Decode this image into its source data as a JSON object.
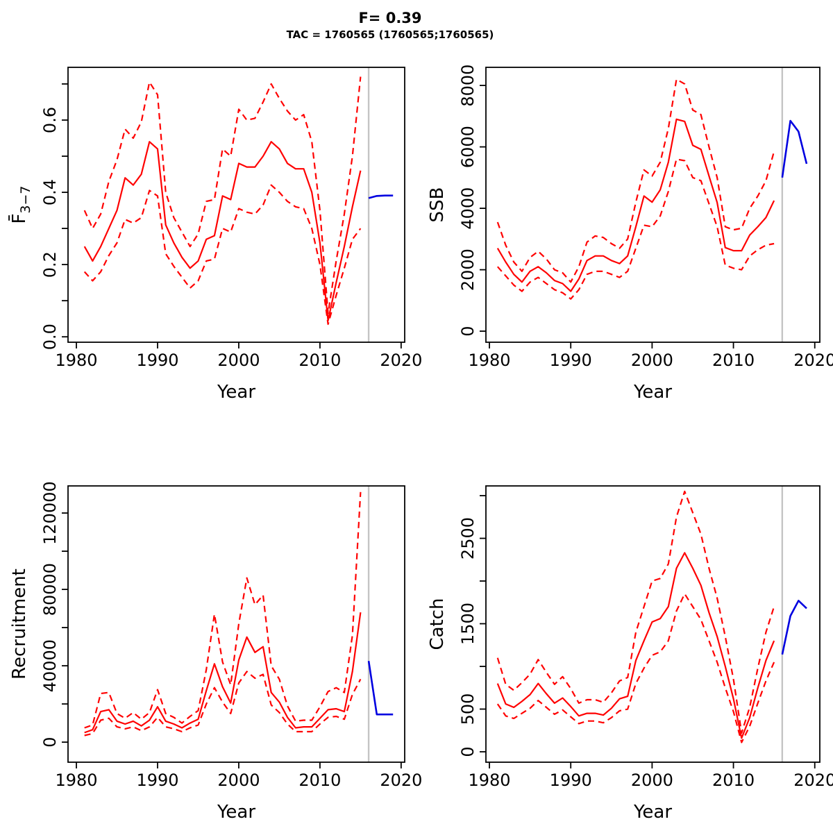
{
  "header": {
    "title": "F= 0.39",
    "subtitle": "TAC = 1760565 (1760565;1760565)"
  },
  "colors": {
    "median_and_ci": "#ff0000",
    "forecast": "#0000e0",
    "divider": "#c4c4c4",
    "axis": "#000000",
    "background": "#ffffff"
  },
  "chart_data": [
    {
      "type": "line",
      "name": "fbar",
      "xlabel": "Year",
      "ylabel": "F3-7",
      "ylabel_parts": {
        "main": "F̄",
        "sub": "3−7"
      },
      "xlim": [
        1978.97,
        2020.44
      ],
      "ylim": [
        -0.015,
        0.746
      ],
      "xticks": {
        "values": [
          1980,
          1990,
          2000,
          2010,
          2020
        ],
        "labels": [
          "1980",
          "1990",
          "2000",
          "2010",
          "2020"
        ]
      },
      "yticks": {
        "values": [
          0.0,
          0.2,
          0.4,
          0.6
        ],
        "labels": [
          "0.0",
          "0.2",
          "0.4",
          "0.6"
        ],
        "minor": [
          0.1,
          0.3,
          0.5,
          0.7
        ]
      },
      "divider_x": 2016,
      "x": [
        1981,
        1982,
        1983,
        1984,
        1985,
        1986,
        1987,
        1988,
        1989,
        1990,
        1991,
        1992,
        1993,
        1994,
        1995,
        1996,
        1997,
        1998,
        1999,
        2000,
        2001,
        2002,
        2003,
        2004,
        2005,
        2006,
        2007,
        2008,
        2009,
        2010,
        2011,
        2012,
        2013,
        2014,
        2015
      ],
      "series": [
        {
          "name": "median",
          "style": "solid",
          "values": [
            0.25,
            0.21,
            0.25,
            0.3,
            0.35,
            0.44,
            0.42,
            0.45,
            0.54,
            0.52,
            0.31,
            0.26,
            0.22,
            0.19,
            0.21,
            0.27,
            0.28,
            0.39,
            0.38,
            0.48,
            0.47,
            0.47,
            0.5,
            0.54,
            0.52,
            0.48,
            0.465,
            0.465,
            0.4,
            0.26,
            0.045,
            0.15,
            0.25,
            0.36,
            0.46
          ]
        },
        {
          "name": "upper-ci",
          "style": "dashed",
          "values": [
            0.35,
            0.3,
            0.34,
            0.43,
            0.49,
            0.575,
            0.55,
            0.595,
            0.705,
            0.67,
            0.4,
            0.33,
            0.29,
            0.25,
            0.285,
            0.375,
            0.38,
            0.52,
            0.5,
            0.63,
            0.6,
            0.605,
            0.65,
            0.7,
            0.66,
            0.625,
            0.6,
            0.615,
            0.54,
            0.35,
            0.065,
            0.21,
            0.34,
            0.5,
            0.72
          ]
        },
        {
          "name": "lower-ci",
          "style": "dashed",
          "values": [
            0.18,
            0.155,
            0.18,
            0.225,
            0.26,
            0.325,
            0.315,
            0.33,
            0.405,
            0.39,
            0.23,
            0.195,
            0.165,
            0.135,
            0.155,
            0.21,
            0.215,
            0.3,
            0.29,
            0.355,
            0.345,
            0.34,
            0.365,
            0.42,
            0.4,
            0.375,
            0.36,
            0.355,
            0.3,
            0.2,
            0.035,
            0.115,
            0.19,
            0.27,
            0.3
          ]
        },
        {
          "name": "forecast",
          "style": "solid",
          "color": "forecast",
          "x": [
            2016,
            2017,
            2018,
            2019
          ],
          "values": [
            0.384,
            0.39,
            0.391,
            0.391
          ]
        }
      ]
    },
    {
      "type": "line",
      "name": "ssb",
      "xlabel": "Year",
      "ylabel": "SSB",
      "xlim": [
        1979.57,
        2020.62
      ],
      "ylim": [
        -360,
        8590
      ],
      "xticks": {
        "values": [
          1980,
          1990,
          2000,
          2010,
          2020
        ],
        "labels": [
          "1980",
          "1990",
          "2000",
          "2010",
          "2020"
        ]
      },
      "yticks": {
        "values": [
          0,
          2000,
          4000,
          6000,
          8000
        ],
        "labels": [
          "0",
          "2000",
          "4000",
          "6000",
          "8000"
        ],
        "minor": []
      },
      "divider_x": 2016,
      "x": [
        1981,
        1982,
        1983,
        1984,
        1985,
        1986,
        1987,
        1988,
        1989,
        1990,
        1991,
        1992,
        1993,
        1994,
        1995,
        1996,
        1997,
        1998,
        1999,
        2000,
        2001,
        2002,
        2003,
        2004,
        2005,
        2006,
        2007,
        2008,
        2009,
        2010,
        2011,
        2012,
        2013,
        2014,
        2015
      ],
      "series": [
        {
          "name": "median",
          "style": "solid",
          "values": [
            2700,
            2250,
            1850,
            1600,
            1950,
            2100,
            1900,
            1650,
            1550,
            1300,
            1700,
            2300,
            2450,
            2450,
            2300,
            2200,
            2450,
            3400,
            4400,
            4200,
            4600,
            5500,
            6900,
            6830,
            6050,
            5920,
            5050,
            4190,
            2720,
            2620,
            2620,
            3130,
            3400,
            3700,
            4250
          ]
        },
        {
          "name": "upper-ci",
          "style": "dashed",
          "values": [
            3550,
            2800,
            2250,
            1950,
            2400,
            2600,
            2350,
            2000,
            1900,
            1600,
            2100,
            2900,
            3100,
            3050,
            2850,
            2700,
            3000,
            4200,
            5250,
            5050,
            5500,
            6600,
            8200,
            8050,
            7200,
            7050,
            6000,
            5000,
            3400,
            3300,
            3350,
            4000,
            4400,
            4900,
            5850
          ]
        },
        {
          "name": "lower-ci",
          "style": "dashed",
          "values": [
            2100,
            1800,
            1500,
            1300,
            1600,
            1750,
            1550,
            1350,
            1250,
            1050,
            1350,
            1850,
            1950,
            1950,
            1850,
            1750,
            1950,
            2700,
            3450,
            3400,
            3750,
            4550,
            5600,
            5550,
            5000,
            4900,
            4150,
            3400,
            2150,
            2050,
            2000,
            2450,
            2650,
            2800,
            2850
          ]
        },
        {
          "name": "forecast",
          "style": "solid",
          "color": "forecast",
          "x": [
            2016,
            2017,
            2018,
            2019
          ],
          "values": [
            5000,
            6850,
            6500,
            5450
          ]
        }
      ]
    },
    {
      "type": "line",
      "name": "recruitment",
      "xlabel": "Year",
      "ylabel": "Recruitment",
      "xlim": [
        1978.97,
        2020.44
      ],
      "ylim": [
        -10500,
        134200
      ],
      "xticks": {
        "values": [
          1980,
          1990,
          2000,
          2010,
          2020
        ],
        "labels": [
          "1980",
          "1990",
          "2000",
          "2010",
          "2020"
        ]
      },
      "yticks": {
        "values": [
          0,
          40000,
          80000,
          120000
        ],
        "labels": [
          "0",
          "40000",
          "80000",
          "120000"
        ],
        "minor": [
          20000,
          60000,
          100000
        ]
      },
      "divider_x": 2016,
      "x": [
        1981,
        1982,
        1983,
        1984,
        1985,
        1986,
        1987,
        1988,
        1989,
        1990,
        1991,
        1992,
        1993,
        1994,
        1995,
        1996,
        1997,
        1998,
        1999,
        2000,
        2001,
        2002,
        2003,
        2004,
        2005,
        2006,
        2007,
        2008,
        2009,
        2010,
        2011,
        2012,
        2013,
        2014,
        2015
      ],
      "series": [
        {
          "name": "median",
          "style": "solid",
          "values": [
            5000,
            6500,
            16000,
            17000,
            11000,
            9500,
            11000,
            8500,
            11500,
            18500,
            11000,
            9500,
            7500,
            10000,
            12000,
            27000,
            41000,
            29000,
            20500,
            43000,
            55000,
            47000,
            50000,
            26000,
            21000,
            13000,
            7500,
            8000,
            8000,
            12500,
            17000,
            17500,
            16000,
            37000,
            68000
          ]
        },
        {
          "name": "upper-ci",
          "style": "dashed",
          "values": [
            7500,
            9000,
            25500,
            26000,
            15000,
            12500,
            15500,
            12000,
            15500,
            27500,
            15000,
            13000,
            10000,
            13500,
            16500,
            38000,
            67000,
            42000,
            30000,
            62000,
            86000,
            72000,
            77000,
            40000,
            33000,
            19000,
            11000,
            11500,
            11500,
            18500,
            26500,
            28500,
            26000,
            56000,
            131000
          ]
        },
        {
          "name": "lower-ci",
          "style": "dashed",
          "values": [
            3500,
            4500,
            11500,
            12500,
            8000,
            7000,
            8000,
            6000,
            8000,
            13000,
            8000,
            7000,
            5500,
            7500,
            9000,
            20000,
            28500,
            21000,
            15000,
            31000,
            37000,
            33500,
            35500,
            19500,
            15500,
            9500,
            5500,
            5500,
            5500,
            9500,
            13000,
            13500,
            12000,
            25000,
            33000
          ]
        },
        {
          "name": "forecast",
          "style": "solid",
          "color": "forecast",
          "x": [
            2016,
            2017,
            2018,
            2019
          ],
          "values": [
            42500,
            14500,
            14500,
            14500
          ]
        }
      ]
    },
    {
      "type": "line",
      "name": "catch",
      "xlabel": "Year",
      "ylabel": "Catch",
      "xlim": [
        1979.57,
        2020.62
      ],
      "ylim": [
        -122,
        3114
      ],
      "xticks": {
        "values": [
          1980,
          1990,
          2000,
          2010,
          2020
        ],
        "labels": [
          "1980",
          "1990",
          "2000",
          "2010",
          "2020"
        ]
      },
      "yticks": {
        "values": [
          0,
          500,
          1500,
          2500
        ],
        "labels": [
          "0",
          "500",
          "1500",
          "2500"
        ],
        "minor": [
          1000,
          2000,
          3000
        ]
      },
      "divider_x": 2016,
      "x": [
        1981,
        1982,
        1983,
        1984,
        1985,
        1986,
        1987,
        1988,
        1989,
        1990,
        1991,
        1992,
        1993,
        1994,
        1995,
        1996,
        1997,
        1998,
        1999,
        2000,
        2001,
        2002,
        2003,
        2004,
        2005,
        2006,
        2007,
        2008,
        2009,
        2010,
        2011,
        2012,
        2013,
        2014,
        2015
      ],
      "series": [
        {
          "name": "median",
          "style": "solid",
          "values": [
            800,
            560,
            520,
            590,
            670,
            800,
            680,
            570,
            630,
            530,
            420,
            450,
            450,
            430,
            510,
            620,
            650,
            1070,
            1300,
            1520,
            1560,
            1700,
            2150,
            2330,
            2150,
            1950,
            1630,
            1350,
            1000,
            620,
            160,
            400,
            750,
            1070,
            1300
          ]
        },
        {
          "name": "upper-ci",
          "style": "dashed",
          "values": [
            1100,
            790,
            720,
            810,
            910,
            1080,
            930,
            790,
            880,
            740,
            570,
            610,
            610,
            580,
            690,
            830,
            870,
            1400,
            1700,
            2000,
            2030,
            2200,
            2750,
            3050,
            2800,
            2550,
            2150,
            1800,
            1350,
            850,
            220,
            520,
            980,
            1400,
            1700
          ]
        },
        {
          "name": "lower-ci",
          "style": "dashed",
          "values": [
            560,
            420,
            390,
            450,
            510,
            600,
            520,
            440,
            490,
            410,
            330,
            360,
            360,
            340,
            400,
            480,
            500,
            800,
            980,
            1130,
            1170,
            1300,
            1650,
            1850,
            1700,
            1550,
            1300,
            1050,
            750,
            470,
            110,
            300,
            570,
            830,
            1050
          ]
        },
        {
          "name": "forecast",
          "style": "solid",
          "color": "forecast",
          "x": [
            2016,
            2017,
            2018,
            2019
          ],
          "values": [
            1140,
            1590,
            1770,
            1680
          ]
        }
      ]
    }
  ]
}
